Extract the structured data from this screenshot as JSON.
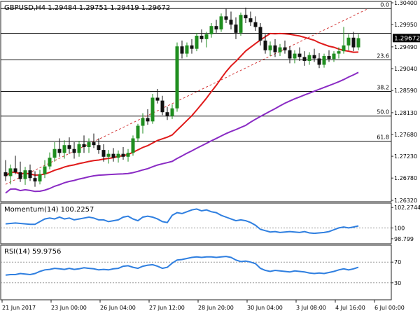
{
  "chart_data": [
    {
      "type": "candlestick",
      "title": "GBPUSD,H4  1.29484 1.29751 1.29419 1.29672",
      "ylim": [
        1.2632,
        1.304
      ],
      "y_ticks": [
        "1.30400",
        "1.29950",
        "1.29490",
        "1.29040",
        "1.28590",
        "1.28130",
        "1.27680",
        "1.27230",
        "1.26780",
        "1.26320"
      ],
      "current_price": "1.29672",
      "fib_levels": [
        {
          "label": "0.0",
          "price": 1.3028
        },
        {
          "label": "23.6",
          "price": 1.2922
        },
        {
          "label": "38.2",
          "price": 1.2857
        },
        {
          "label": "50.0",
          "price": 1.2806
        },
        {
          "label": "61.8",
          "price": 1.2754
        }
      ],
      "fib_extra_line": 1.2977,
      "trendline": {
        "from": [
          0,
          1.2665
        ],
        "to": [
          74,
          1.3028
        ]
      },
      "candles": [
        [
          1.269,
          1.2715,
          1.2672,
          1.2682
        ],
        [
          1.2682,
          1.2706,
          1.2665,
          1.2698
        ],
        [
          1.2698,
          1.2724,
          1.2686,
          1.269
        ],
        [
          1.269,
          1.2712,
          1.267,
          1.2676
        ],
        [
          1.2676,
          1.2701,
          1.2664,
          1.2694
        ],
        [
          1.2694,
          1.2706,
          1.2672,
          1.2678
        ],
        [
          1.2678,
          1.2692,
          1.266,
          1.2671
        ],
        [
          1.2671,
          1.2695,
          1.2665,
          1.2686
        ],
        [
          1.2686,
          1.2715,
          1.2678,
          1.2702
        ],
        [
          1.2702,
          1.2731,
          1.2696,
          1.272
        ],
        [
          1.272,
          1.2752,
          1.2712,
          1.2738
        ],
        [
          1.2738,
          1.276,
          1.2722,
          1.273
        ],
        [
          1.273,
          1.2756,
          1.2718,
          1.2746
        ],
        [
          1.2746,
          1.2762,
          1.2728,
          1.2738
        ],
        [
          1.2738,
          1.2752,
          1.2718,
          1.273
        ],
        [
          1.273,
          1.2755,
          1.2722,
          1.2748
        ],
        [
          1.2748,
          1.2766,
          1.273,
          1.2742
        ],
        [
          1.2742,
          1.276,
          1.273,
          1.2752
        ],
        [
          1.2752,
          1.277,
          1.274,
          1.2746
        ],
        [
          1.2746,
          1.276,
          1.2728,
          1.2736
        ],
        [
          1.2736,
          1.2748,
          1.2712,
          1.2722
        ],
        [
          1.2722,
          1.2736,
          1.2708,
          1.2728
        ],
        [
          1.2728,
          1.274,
          1.2712,
          1.272
        ],
        [
          1.272,
          1.2735,
          1.271,
          1.2728
        ],
        [
          1.2728,
          1.2742,
          1.2716,
          1.2722
        ],
        [
          1.2722,
          1.2738,
          1.2712,
          1.273
        ],
        [
          1.273,
          1.2766,
          1.2724,
          1.276
        ],
        [
          1.276,
          1.279,
          1.2752,
          1.2786
        ],
        [
          1.2786,
          1.2812,
          1.277,
          1.2802
        ],
        [
          1.2802,
          1.282,
          1.2788,
          1.2795
        ],
        [
          1.2795,
          1.2852,
          1.279,
          1.2844
        ],
        [
          1.2844,
          1.2862,
          1.2832,
          1.2838
        ],
        [
          1.2838,
          1.2848,
          1.2808,
          1.2814
        ],
        [
          1.2814,
          1.2825,
          1.2798,
          1.2806
        ],
        [
          1.2806,
          1.283,
          1.28,
          1.2822
        ],
        [
          1.2822,
          1.2958,
          1.2815,
          1.295
        ],
        [
          1.295,
          1.2962,
          1.2925,
          1.2935
        ],
        [
          1.2935,
          1.2958,
          1.2928,
          1.2952
        ],
        [
          1.2952,
          1.2965,
          1.2935,
          1.2945
        ],
        [
          1.2945,
          1.2978,
          1.294,
          1.2972
        ],
        [
          1.2972,
          1.2985,
          1.2958,
          1.2965
        ],
        [
          1.2965,
          1.298,
          1.2948,
          1.2975
        ],
        [
          1.2975,
          1.2998,
          1.2968,
          1.2992
        ],
        [
          1.2992,
          1.3005,
          1.2978,
          1.2985
        ],
        [
          1.2985,
          1.3018,
          1.298,
          1.3012
        ],
        [
          1.3012,
          1.3028,
          1.2998,
          1.3005
        ],
        [
          1.3005,
          1.3022,
          1.2985,
          1.2995
        ],
        [
          1.2995,
          1.301,
          1.2965,
          1.2978
        ],
        [
          1.2978,
          1.302,
          1.2972,
          1.3015
        ],
        [
          1.3015,
          1.303,
          1.2998,
          1.3008
        ],
        [
          1.3008,
          1.3022,
          1.2992,
          1.3
        ],
        [
          1.3,
          1.3012,
          1.2982,
          1.299
        ],
        [
          1.299,
          1.2998,
          1.2952,
          1.2962
        ],
        [
          1.2962,
          1.2975,
          1.2935,
          1.2942
        ],
        [
          1.2942,
          1.296,
          1.293,
          1.2952
        ],
        [
          1.2952,
          1.2965,
          1.2928,
          1.2938
        ],
        [
          1.2938,
          1.2955,
          1.293,
          1.2948
        ],
        [
          1.2948,
          1.2962,
          1.2935,
          1.2942
        ],
        [
          1.2942,
          1.295,
          1.2915,
          1.2925
        ],
        [
          1.2925,
          1.2942,
          1.2915,
          1.2935
        ],
        [
          1.2935,
          1.2948,
          1.292,
          1.2928
        ],
        [
          1.2928,
          1.294,
          1.291,
          1.292
        ],
        [
          1.292,
          1.2938,
          1.2912,
          1.2932
        ],
        [
          1.2932,
          1.2945,
          1.2918,
          1.2925
        ],
        [
          1.2925,
          1.2936,
          1.2905,
          1.2912
        ],
        [
          1.2912,
          1.2935,
          1.2906,
          1.293
        ],
        [
          1.293,
          1.2942,
          1.2918,
          1.2924
        ],
        [
          1.2924,
          1.294,
          1.2918,
          1.2935
        ],
        [
          1.2935,
          1.2948,
          1.2925,
          1.294
        ],
        [
          1.294,
          1.299,
          1.2935,
          1.2952
        ],
        [
          1.2952,
          1.2975,
          1.2942,
          1.2968
        ],
        [
          1.2968,
          1.298,
          1.294,
          1.2948
        ],
        [
          1.2948,
          1.2975,
          1.2942,
          1.2967
        ]
      ]
    },
    {
      "type": "line",
      "title": "Momentum(14) 100.2257",
      "y_ticks": [
        "102.2744",
        "100",
        "98.799"
      ],
      "ylim": [
        98.4,
        102.6
      ],
      "reference_level": 100,
      "values": [
        100.45,
        100.5,
        100.55,
        100.5,
        100.45,
        100.4,
        100.4,
        100.7,
        101.0,
        101.1,
        101.0,
        101.2,
        101.0,
        101.1,
        100.9,
        101.0,
        101.1,
        101.2,
        101.1,
        100.9,
        100.9,
        100.7,
        100.8,
        100.9,
        101.2,
        101.3,
        101.0,
        100.8,
        101.2,
        101.3,
        101.2,
        101.0,
        100.7,
        100.6,
        101.4,
        101.7,
        101.6,
        101.8,
        102.0,
        102.1,
        101.9,
        102.0,
        101.8,
        101.7,
        101.4,
        101.2,
        101.0,
        100.8,
        100.9,
        100.8,
        100.6,
        100.3,
        99.85,
        99.7,
        99.55,
        99.6,
        99.5,
        99.55,
        99.6,
        99.55,
        99.5,
        99.6,
        99.45,
        99.4,
        99.45,
        99.5,
        99.6,
        99.8,
        100.0,
        100.1,
        100.0,
        100.1,
        100.23
      ]
    },
    {
      "type": "line",
      "title": "RSI(14) 59.9756",
      "y_ticks": [
        "70",
        "30"
      ],
      "ylim": [
        0,
        100
      ],
      "levels": [
        70,
        30
      ],
      "values": [
        45,
        46,
        46,
        48,
        47,
        46,
        48,
        52,
        55,
        56,
        58,
        57,
        56,
        58,
        56,
        57,
        59,
        58,
        57,
        55,
        56,
        55,
        57,
        58,
        62,
        63,
        60,
        58,
        62,
        64,
        65,
        62,
        58,
        60,
        68,
        74,
        75,
        77,
        79,
        80,
        79,
        80,
        80,
        79,
        80,
        81,
        79,
        74,
        71,
        72,
        70,
        67,
        58,
        54,
        52,
        54,
        53,
        52,
        51,
        53,
        52,
        51,
        49,
        48,
        49,
        48,
        50,
        52,
        55,
        57,
        55,
        57,
        59.98
      ]
    }
  ],
  "x_axis": {
    "labels": [
      "21 Jun 2017",
      "23 Jun 00:00",
      "26 Jun 04:00",
      "27 Jun 12:00",
      "28 Jun 20:00",
      "30 Jun 04:00",
      "3 Jul 08:00",
      "4 Jul 16:00",
      "6 Jul 00:00"
    ],
    "label_bars": [
      0,
      10,
      20,
      30,
      40,
      50,
      60,
      68,
      76
    ]
  },
  "colors": {
    "bull": "#1f8e1f",
    "bear": "#111111",
    "sma_fast": "#e01b1b",
    "sma_slow": "#8a2bc4",
    "oscillator": "#2f7fe0",
    "trendline": "#d43a3a",
    "price_label_bg": "#000000"
  }
}
